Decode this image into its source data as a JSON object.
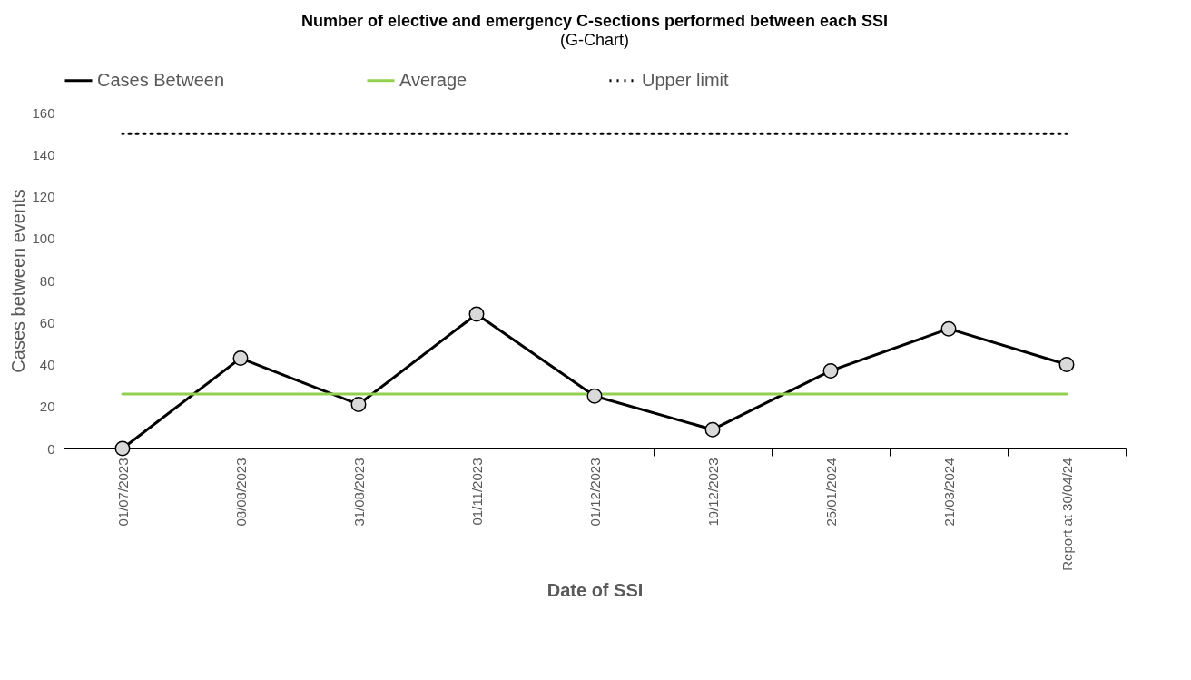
{
  "chart_data": {
    "type": "line",
    "title": "Number of elective and emergency C-sections performed between each SSI",
    "subtitle": "(G-Chart)",
    "xlabel": "Date of SSI",
    "ylabel": "Cases between events",
    "categories": [
      "01/07/2023",
      "08/08/2023",
      "31/08/2023",
      "01/11/2023",
      "01/12/2023",
      "19/12/2023",
      "25/01/2024",
      "21/03/2024",
      "Report at 30/04/24"
    ],
    "series": [
      {
        "name": "Cases Between",
        "color": "#000000",
        "marker": "circle",
        "line_style": "solid",
        "values": [
          0,
          43,
          21,
          64,
          25,
          9,
          37,
          57,
          40
        ]
      },
      {
        "name": "Average",
        "color": "#92d050",
        "marker": "none",
        "line_style": "solid",
        "values": [
          26,
          26,
          26,
          26,
          26,
          26,
          26,
          26,
          26
        ]
      },
      {
        "name": "Upper limit",
        "color": "#000000",
        "marker": "none",
        "line_style": "dotted",
        "values": [
          150,
          150,
          150,
          150,
          150,
          150,
          150,
          150,
          150
        ]
      }
    ],
    "ylim": [
      0,
      160
    ],
    "yticks": [
      0,
      20,
      40,
      60,
      80,
      100,
      120,
      140,
      160
    ],
    "grid": false,
    "legend": "top"
  }
}
